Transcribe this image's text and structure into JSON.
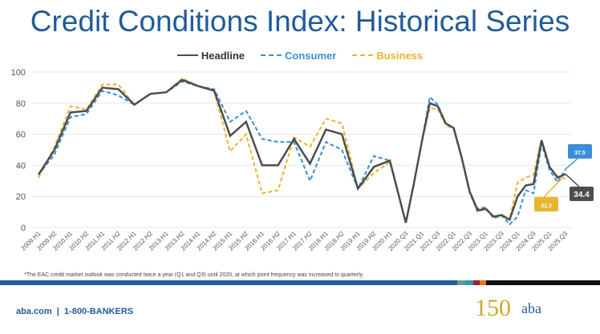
{
  "title": "Credit Conditions Index: Historical Series",
  "chart_data": {
    "type": "line",
    "title": "Credit Conditions Index: Historical Series",
    "ylim": [
      0,
      100
    ],
    "yticks": [
      0,
      20,
      40,
      60,
      80,
      100
    ],
    "grid": true,
    "legend": "top",
    "x": [
      "2009.H1",
      "2009.H2",
      "2010.H1",
      "2010.H2",
      "2011.H1",
      "2011.H2",
      "2012.H1",
      "2012.H2",
      "2013.H1",
      "2013.H2",
      "2014.H1",
      "2014.H2",
      "2015.H1",
      "2015.H2",
      "2016.H1",
      "2016.H2",
      "2017.H1",
      "2017.H2",
      "2018.H1",
      "2018.H2",
      "2019.H1",
      "2019.H2",
      "2020.H1",
      "2020.Q3",
      "",
      "2021.Q1",
      "",
      "2021.Q3",
      "",
      "2022.Q1",
      "",
      "2022.Q3",
      "",
      "2023.Q1",
      "",
      "2023.Q3",
      "",
      "2024.Q1",
      "",
      "2024.Q3",
      "",
      "2025.Q1",
      "",
      "2025.Q3"
    ],
    "series": [
      {
        "name": "Headline",
        "color": "#4d4d4d",
        "dash": false,
        "values": [
          34,
          50,
          74,
          75,
          90,
          89,
          79,
          86,
          87,
          95,
          91,
          88,
          59,
          68,
          40,
          40,
          57,
          41,
          63,
          60,
          25,
          39,
          43,
          3,
          28,
          55,
          80,
          78,
          67,
          64,
          45,
          23,
          11,
          12,
          7,
          8,
          5,
          20,
          27,
          28,
          56,
          39,
          32,
          34.4
        ],
        "end_label": "34.4"
      },
      {
        "name": "Consumer",
        "color": "#3a8fd6",
        "dash": true,
        "values": [
          34,
          47,
          71,
          73,
          88,
          85,
          79,
          86,
          87,
          94,
          91,
          89,
          68,
          75,
          57,
          55,
          55,
          30,
          55,
          50,
          25,
          46,
          43,
          3,
          28,
          55,
          84,
          79,
          67,
          64,
          45,
          23,
          12,
          13,
          6,
          8,
          2,
          7,
          24,
          22,
          54,
          37,
          29,
          37.5
        ],
        "end_label": "37.5"
      },
      {
        "name": "Business",
        "color": "#e8b52e",
        "dash": true,
        "values": [
          32,
          52,
          78,
          76,
          92,
          92,
          79,
          86,
          87,
          96,
          91,
          88,
          49,
          60,
          22,
          24,
          58,
          52,
          70,
          67,
          25,
          35,
          42,
          3,
          28,
          55,
          77,
          76,
          66,
          63,
          44,
          22,
          10,
          12,
          6,
          7,
          5,
          29,
          32,
          34,
          57,
          39,
          33,
          31.3
        ],
        "end_label": "31.3"
      }
    ]
  },
  "note": "*The EAC credit market outlook was conducted twice a year (Q1 and Q3) until 2020, at which point frequency was increased to quarterly.",
  "footer": {
    "contact": "aba.com  |  1-800-BANKERS",
    "logo_150": "150",
    "logo_aba": "aba"
  },
  "colors": {
    "title": "#1f5c99",
    "bar": [
      "#1f5c99",
      "#6a9a8c",
      "#2a9ab0",
      "#a01c3c",
      "#e07a1f",
      "#111111"
    ]
  }
}
